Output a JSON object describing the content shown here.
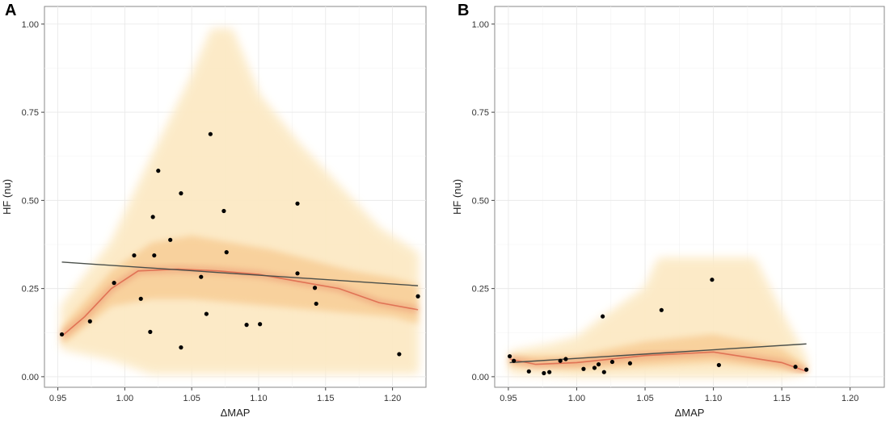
{
  "figure": {
    "panel_labels": [
      "A",
      "B"
    ]
  },
  "chart_data": [
    {
      "type": "scatter",
      "panel": "A",
      "title": "",
      "xlabel": "ΔMAP",
      "ylabel": "HF (nu)",
      "xlim": [
        0.94,
        1.225
      ],
      "ylim": [
        -0.03,
        1.05
      ],
      "xticks": [
        0.95,
        1.0,
        1.05,
        1.1,
        1.15,
        1.2
      ],
      "xtick_labels": [
        "0.95",
        "1.00",
        "1.05",
        "1.10",
        "1.15",
        "1.20"
      ],
      "yticks": [
        0.0,
        0.25,
        0.5,
        0.75,
        1.0
      ],
      "ytick_labels": [
        "0.00",
        "0.25",
        "0.50",
        "0.75",
        "1.00"
      ],
      "grid": true,
      "points": [
        {
          "x": 0.953,
          "y": 0.12
        },
        {
          "x": 0.974,
          "y": 0.157
        },
        {
          "x": 0.992,
          "y": 0.266
        },
        {
          "x": 1.007,
          "y": 0.344
        },
        {
          "x": 1.012,
          "y": 0.221
        },
        {
          "x": 1.019,
          "y": 0.127
        },
        {
          "x": 1.021,
          "y": 0.453
        },
        {
          "x": 1.022,
          "y": 0.344
        },
        {
          "x": 1.025,
          "y": 0.584
        },
        {
          "x": 1.034,
          "y": 0.388
        },
        {
          "x": 1.042,
          "y": 0.52
        },
        {
          "x": 1.042,
          "y": 0.083
        },
        {
          "x": 1.057,
          "y": 0.283
        },
        {
          "x": 1.061,
          "y": 0.178
        },
        {
          "x": 1.064,
          "y": 0.688
        },
        {
          "x": 1.074,
          "y": 0.47
        },
        {
          "x": 1.076,
          "y": 0.353
        },
        {
          "x": 1.091,
          "y": 0.147
        },
        {
          "x": 1.101,
          "y": 0.149
        },
        {
          "x": 1.129,
          "y": 0.491
        },
        {
          "x": 1.129,
          "y": 0.293
        },
        {
          "x": 1.142,
          "y": 0.252
        },
        {
          "x": 1.143,
          "y": 0.207
        },
        {
          "x": 1.205,
          "y": 0.064
        },
        {
          "x": 1.219,
          "y": 0.228
        }
      ],
      "regression_line": {
        "x": [
          0.953,
          1.219
        ],
        "y": [
          0.325,
          0.258
        ]
      },
      "band_upper": {
        "x": [
          0.953,
          0.99,
          1.02,
          1.05,
          1.065,
          1.08,
          1.1,
          1.13,
          1.16,
          1.19,
          1.219
        ],
        "y": [
          0.2,
          0.38,
          0.62,
          0.85,
          0.985,
          0.985,
          0.8,
          0.66,
          0.54,
          0.42,
          0.35
        ]
      },
      "band_lower": {
        "x": [
          0.953,
          0.99,
          1.02,
          1.05,
          1.08,
          1.1,
          1.13,
          1.16,
          1.19,
          1.219
        ],
        "y": [
          0.08,
          0.05,
          0.01,
          0.01,
          0.01,
          0.01,
          0.01,
          0.01,
          0.01,
          0.01
        ]
      },
      "band_core_upper": {
        "x": [
          0.953,
          0.99,
          1.02,
          1.05,
          1.08,
          1.11,
          1.14,
          1.17,
          1.2,
          1.219
        ],
        "y": [
          0.14,
          0.3,
          0.38,
          0.4,
          0.38,
          0.36,
          0.33,
          0.3,
          0.28,
          0.26
        ]
      },
      "band_core_lower": {
        "x": [
          0.953,
          0.99,
          1.02,
          1.05,
          1.08,
          1.11,
          1.14,
          1.17,
          1.2,
          1.219
        ],
        "y": [
          0.09,
          0.2,
          0.22,
          0.22,
          0.21,
          0.2,
          0.19,
          0.18,
          0.17,
          0.15
        ]
      },
      "smooth_curve": {
        "x": [
          0.953,
          0.97,
          0.99,
          1.01,
          1.04,
          1.07,
          1.1,
          1.13,
          1.16,
          1.19,
          1.219
        ],
        "y": [
          0.115,
          0.17,
          0.25,
          0.3,
          0.305,
          0.3,
          0.29,
          0.27,
          0.25,
          0.21,
          0.19
        ]
      }
    },
    {
      "type": "scatter",
      "panel": "B",
      "title": "",
      "xlabel": "ΔMAP",
      "ylabel": "HF (nu)",
      "xlim": [
        0.94,
        1.225
      ],
      "ylim": [
        -0.03,
        1.05
      ],
      "xticks": [
        0.95,
        1.0,
        1.05,
        1.1,
        1.15,
        1.2
      ],
      "xtick_labels": [
        "0.95",
        "1.00",
        "1.05",
        "1.10",
        "1.15",
        "1.20"
      ],
      "yticks": [
        0.0,
        0.25,
        0.5,
        0.75,
        1.0
      ],
      "ytick_labels": [
        "0.00",
        "0.25",
        "0.50",
        "0.75",
        "1.00"
      ],
      "grid": true,
      "points": [
        {
          "x": 0.951,
          "y": 0.058
        },
        {
          "x": 0.954,
          "y": 0.045
        },
        {
          "x": 0.965,
          "y": 0.015
        },
        {
          "x": 0.976,
          "y": 0.01
        },
        {
          "x": 0.98,
          "y": 0.013
        },
        {
          "x": 0.988,
          "y": 0.045
        },
        {
          "x": 0.992,
          "y": 0.05
        },
        {
          "x": 1.005,
          "y": 0.022
        },
        {
          "x": 1.013,
          "y": 0.025
        },
        {
          "x": 1.016,
          "y": 0.035
        },
        {
          "x": 1.019,
          "y": 0.171
        },
        {
          "x": 1.02,
          "y": 0.013
        },
        {
          "x": 1.026,
          "y": 0.042
        },
        {
          "x": 1.039,
          "y": 0.038
        },
        {
          "x": 1.062,
          "y": 0.189
        },
        {
          "x": 1.099,
          "y": 0.275
        },
        {
          "x": 1.104,
          "y": 0.033
        },
        {
          "x": 1.16,
          "y": 0.028
        },
        {
          "x": 1.168,
          "y": 0.02
        }
      ],
      "regression_line": {
        "x": [
          0.951,
          1.168
        ],
        "y": [
          0.04,
          0.093
        ]
      },
      "band_upper": {
        "x": [
          0.951,
          0.98,
          1.0,
          1.02,
          1.05,
          1.06,
          1.13,
          1.15,
          1.168
        ],
        "y": [
          0.07,
          0.09,
          0.11,
          0.17,
          0.25,
          0.335,
          0.335,
          0.18,
          0.05
        ]
      },
      "band_lower": {
        "x": [
          0.951,
          1.0,
          1.05,
          1.1,
          1.15,
          1.168
        ],
        "y": [
          0.01,
          0.0,
          0.0,
          0.0,
          0.0,
          0.01
        ]
      },
      "band_core_upper": {
        "x": [
          0.951,
          1.0,
          1.05,
          1.1,
          1.15,
          1.168
        ],
        "y": [
          0.06,
          0.06,
          0.1,
          0.12,
          0.08,
          0.03
        ]
      },
      "band_core_lower": {
        "x": [
          0.951,
          1.0,
          1.05,
          1.1,
          1.15,
          1.168
        ],
        "y": [
          0.03,
          0.02,
          0.03,
          0.04,
          0.02,
          0.01
        ]
      },
      "smooth_curve": {
        "x": [
          0.951,
          0.97,
          1.0,
          1.05,
          1.1,
          1.15,
          1.168
        ],
        "y": [
          0.05,
          0.035,
          0.04,
          0.06,
          0.07,
          0.04,
          0.015
        ]
      }
    }
  ]
}
